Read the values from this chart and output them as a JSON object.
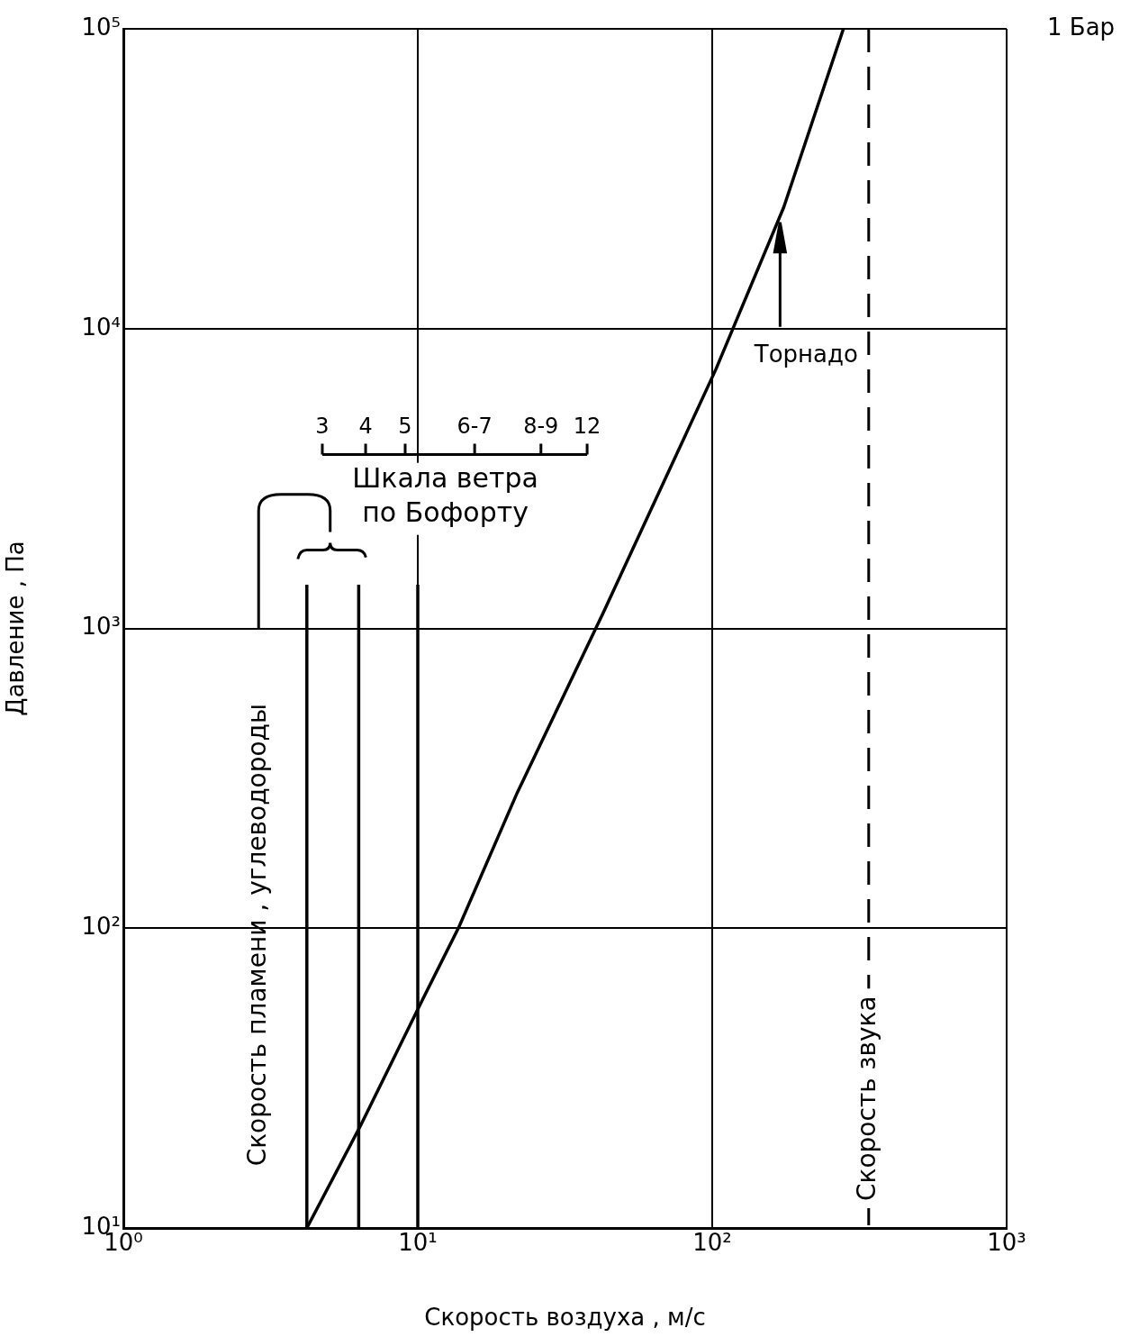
{
  "chart_data": {
    "type": "line",
    "xlabel": "Скорость воздуха , м/с",
    "ylabel": "Давление , Па",
    "log": "xy",
    "xlim": [
      1,
      1000
    ],
    "xticks": [
      {
        "value": 1,
        "label": "10⁰"
      },
      {
        "value": 10,
        "label": "10¹"
      },
      {
        "value": 100,
        "label": "10²"
      },
      {
        "value": 1000,
        "label": "10³"
      }
    ],
    "ylim": [
      10,
      100000
    ],
    "yticks": [
      {
        "value": 10,
        "label": "10¹"
      },
      {
        "value": 100,
        "label": "10²"
      },
      {
        "value": 1000,
        "label": "10³"
      },
      {
        "value": 10000,
        "label": "10⁴"
      },
      {
        "value": 100000,
        "label": "10⁵"
      }
    ],
    "grid": true,
    "legend": false,
    "marker": "none",
    "line_style": "solid",
    "series": [
      {
        "color": "#000000",
        "x": [
          4.2,
          6.4,
          10.4,
          13.8,
          21.8,
          42.7,
          103,
          175,
          279
        ],
        "values": [
          10,
          22,
          58,
          101,
          284,
          1130,
          7330,
          25400,
          100000
        ]
      },
      {
        "color": "#000000",
        "x": [
          4.2,
          4.2
        ],
        "values": [
          10,
          1400
        ]
      },
      {
        "color": "#000000",
        "x": [
          6.3,
          6.3
        ],
        "values": [
          10,
          1400
        ]
      },
      {
        "color": "#000000",
        "x": [
          10,
          10
        ],
        "values": [
          10,
          1400
        ]
      }
    ],
    "ref_lines": [
      {
        "axis": "x",
        "value": 340,
        "label": "Скорость звука",
        "line_style": "dashed",
        "color": "#000000"
      }
    ],
    "annotations": [
      "1 Бар",
      "Торнадо",
      "3",
      "4",
      "5",
      "6-7",
      "8-9",
      "12",
      "Шкала ветра по Бофорту",
      "Скорость пламени , углеводороды"
    ]
  }
}
